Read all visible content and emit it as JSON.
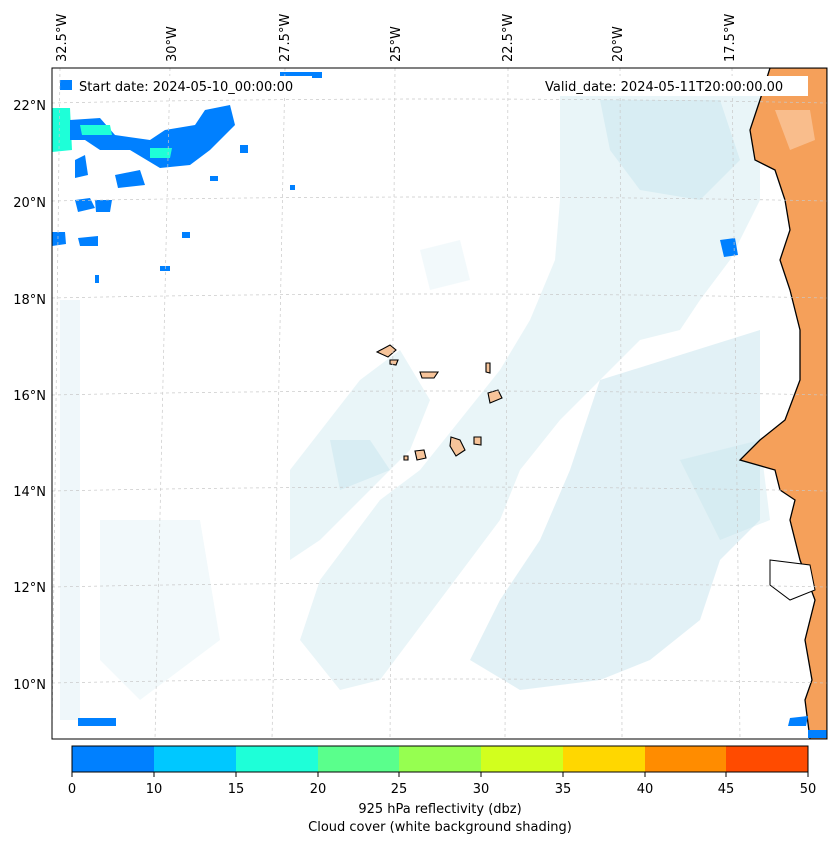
{
  "header": {
    "start_date": "Start date: 2024-05-10_00:00:00",
    "valid_date": "Valid_date: 2024-05-11T20:00:00.00"
  },
  "map": {
    "lon_labels": [
      "32.5°W",
      "30°W",
      "27.5°W",
      "25°W",
      "22.5°W",
      "20°W",
      "17.5°W"
    ],
    "lat_labels": [
      "22°N",
      "20°N",
      "18°N",
      "16°N",
      "14°N",
      "12°N",
      "10°N"
    ],
    "land_color": "#f5a05a",
    "cloud_color": "#bfe1ea",
    "island_color": "#f7c49a"
  },
  "colorbar": {
    "ticks": [
      "0",
      "5",
      "10",
      "15",
      "20",
      "25",
      "30",
      "35",
      "40",
      "45",
      "50"
    ],
    "colors": [
      "#0080ff",
      "#00c8ff",
      "#1effd8",
      "#5aff8c",
      "#96ff50",
      "#d2ff1e",
      "#ffd700",
      "#ff8c00",
      "#ff4b00"
    ],
    "label_line1": "925 hPa reflectivity (dbz)",
    "label_line2": "Cloud cover (white background shading)"
  }
}
